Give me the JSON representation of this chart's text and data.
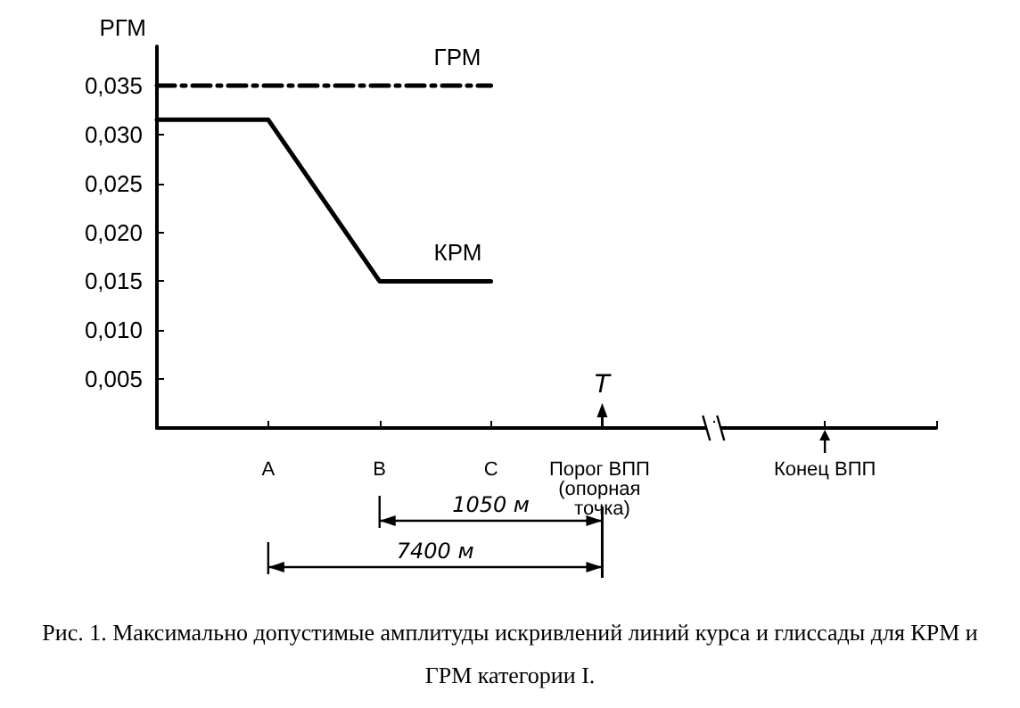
{
  "chart_data": {
    "type": "line",
    "title": "Рис. 1. Максимально допустимые амплитуды искривлений линий курса и глиссады для КРМ и ГРМ категории I.",
    "ylabel": "РГМ",
    "categories": [
      null,
      "A",
      "B",
      "C",
      "Порог ВПП (опорная точка)",
      null,
      "Конец ВПП",
      null
    ],
    "series": [
      {
        "name": "ГРМ",
        "color": "#000000",
        "line_style": "dashed",
        "values": [
          0.035,
          0.035,
          0.035,
          0.035,
          null,
          null,
          null,
          null
        ]
      },
      {
        "name": "КРМ",
        "color": "#000000",
        "line_style": "solid",
        "values": [
          0.0315,
          0.0315,
          0.015,
          0.015,
          null,
          null,
          null,
          null
        ]
      }
    ],
    "ylim": [
      0,
      0.039
    ],
    "yticks": [
      {
        "value": 0.005,
        "label": "0,005"
      },
      {
        "value": 0.01,
        "label": "0,010"
      },
      {
        "value": 0.015,
        "label": "0,015"
      },
      {
        "value": 0.02,
        "label": "0,020"
      },
      {
        "value": 0.025,
        "label": "0,025"
      },
      {
        "value": 0.03,
        "label": "0,030"
      },
      {
        "value": 0.035,
        "label": "0,035"
      }
    ],
    "ref_lines": [
      {
        "axis": "x",
        "value": "Порог ВПП (опорная точка)",
        "label": "T"
      }
    ],
    "annotations": [
      "1050 м",
      "7400 м"
    ],
    "grid": false,
    "legend": false,
    "marker": "none"
  }
}
